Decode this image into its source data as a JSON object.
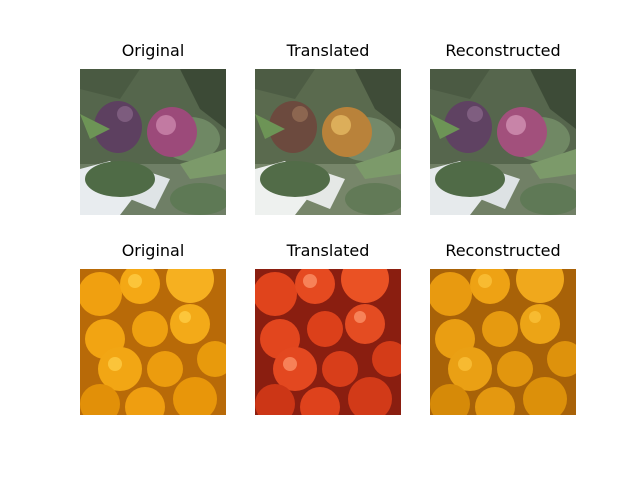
{
  "panels": [
    {
      "title": "Original"
    },
    {
      "title": "Translated"
    },
    {
      "title": "Reconstructed"
    },
    {
      "title": "Original"
    },
    {
      "title": "Translated"
    },
    {
      "title": "Reconstructed"
    }
  ]
}
